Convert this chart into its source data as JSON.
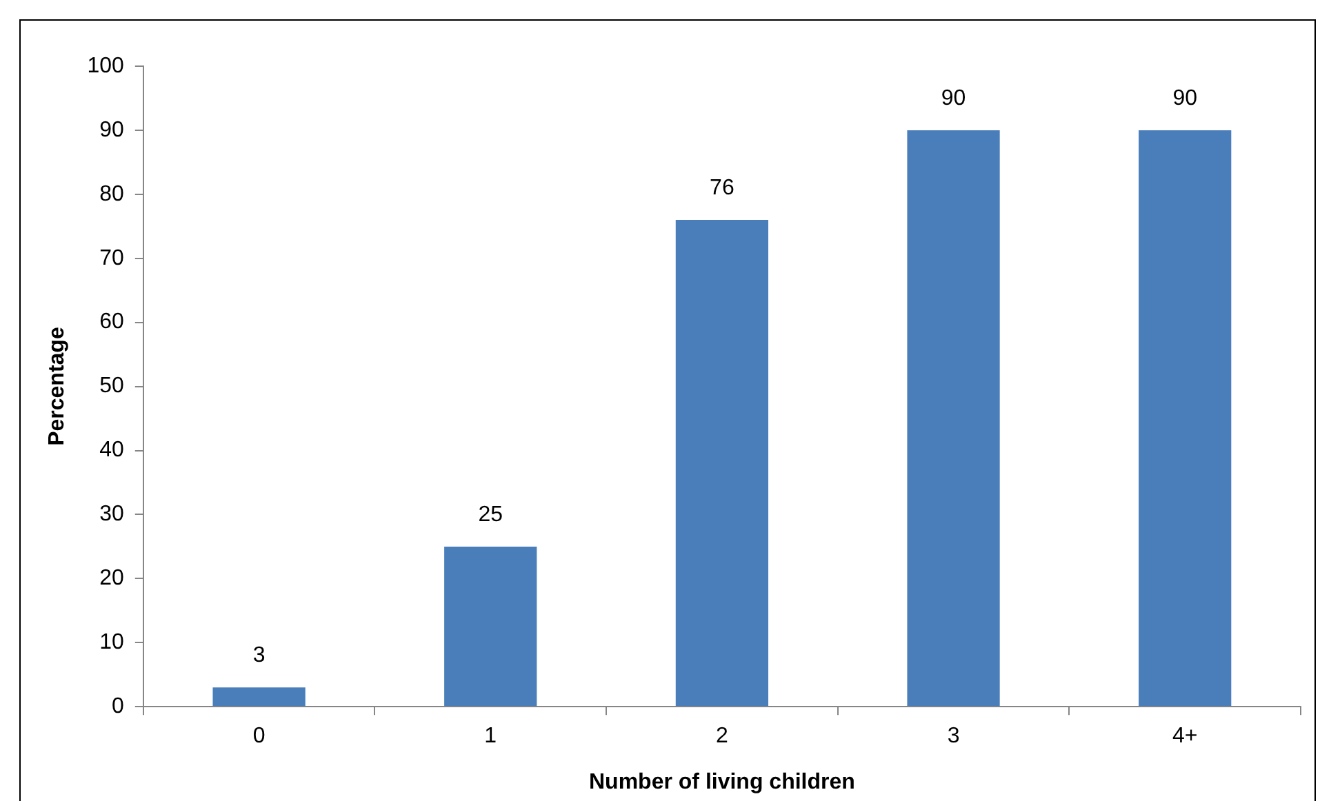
{
  "chart_data": {
    "type": "bar",
    "xlabel": "Number of living children",
    "ylabel": "Percentage",
    "categories": [
      "0",
      "1",
      "2",
      "3",
      "4+"
    ],
    "values": [
      3,
      25,
      76,
      90,
      90
    ],
    "color": "#4a7ebb",
    "ylim": [
      0,
      100
    ],
    "yticks": [
      0,
      10,
      20,
      30,
      40,
      50,
      60,
      70,
      80,
      90,
      100
    ],
    "grid": false,
    "legend": false,
    "data_labels": true
  }
}
